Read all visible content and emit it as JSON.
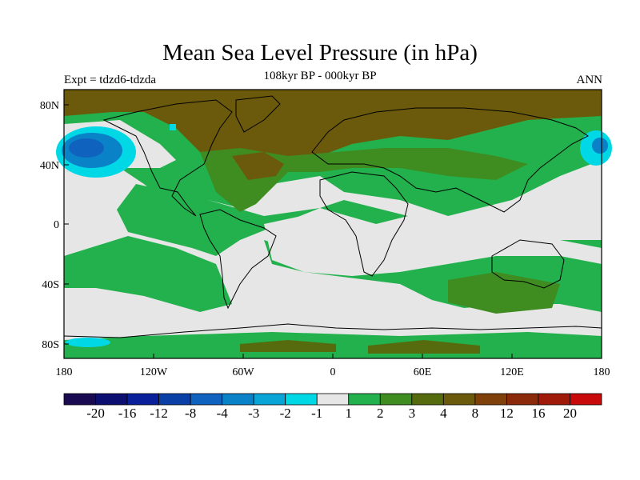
{
  "title": "Mean Sea Level Pressure (in hPa)",
  "subtitle": "108kyr BP - 000kyr BP",
  "experiment": "Expt = tdzd6-tdzda",
  "season": "ANN",
  "lat_ticks": [
    "80N",
    "40N",
    "0",
    "40S",
    "80S"
  ],
  "lon_ticks": [
    "180",
    "120W",
    "60W",
    "0",
    "60E",
    "120E",
    "180"
  ],
  "colorbar": {
    "colors": [
      "#1a0a52",
      "#0d0f70",
      "#0a1f9a",
      "#0a3fa6",
      "#0f62be",
      "#0a82c8",
      "#08a5d6",
      "#00d8e6",
      "#e6e6e6",
      "#22b14c",
      "#3f8c21",
      "#556b0e",
      "#6b5a0c",
      "#7f400a",
      "#8b2a0a",
      "#a01a0a",
      "#c80a0a"
    ],
    "labels": [
      "-20",
      "-16",
      "-12",
      "-8",
      "-4",
      "-3",
      "-2",
      "-1",
      "1",
      "2",
      "3",
      "4",
      "8",
      "12",
      "16",
      "20"
    ]
  },
  "legend_fill": {
    "land_neutral": "#e6e6e6",
    "positive_small": "#22b14c",
    "positive_mid": "#3f8c21",
    "positive_large": "#6b5a0c",
    "negative": "#00d8e6",
    "negative_strong": "#0f62be"
  }
}
